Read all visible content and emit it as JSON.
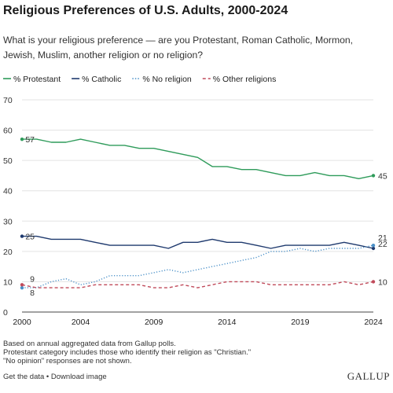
{
  "header": {
    "title": "Religious Preferences of U.S. Adults, 2000-2024",
    "subtitle": "What is your religious preference — are you Protestant, Roman Catholic, Mormon, Jewish, Muslim, another religion or no religion?"
  },
  "footer": {
    "notes": [
      "Based on annual aggregated data from Gallup polls.",
      "Protestant category includes those who identify their religion as \"Christian.\"",
      "\"No opinion\" responses are not shown."
    ],
    "get_data_label": "Get the data",
    "separator": " • ",
    "download_label": "Download image",
    "brand": "GALLUP"
  },
  "chart_data": {
    "type": "line",
    "title": "Religious Preferences of U.S. Adults, 2000-2024",
    "xlabel": "",
    "ylabel": "",
    "xlim": [
      2000,
      2024
    ],
    "ylim": [
      0,
      70
    ],
    "yticks": [
      0,
      10,
      20,
      30,
      40,
      50,
      60,
      70
    ],
    "xticks": [
      2000,
      2004,
      2009,
      2014,
      2019,
      2024
    ],
    "grid": true,
    "legend_position": "top",
    "x": [
      2000,
      2001,
      2002,
      2003,
      2004,
      2005,
      2006,
      2007,
      2008,
      2009,
      2010,
      2011,
      2012,
      2013,
      2014,
      2015,
      2016,
      2017,
      2018,
      2019,
      2020,
      2021,
      2022,
      2023,
      2024
    ],
    "series": [
      {
        "name": "% Protestant",
        "color": "#2e9b5a",
        "style": "solid",
        "values": [
          57,
          57,
          56,
          56,
          57,
          56,
          55,
          55,
          54,
          54,
          53,
          52,
          51,
          48,
          48,
          47,
          47,
          46,
          45,
          45,
          46,
          45,
          45,
          44,
          45
        ],
        "start_label": "57",
        "end_label": "45"
      },
      {
        "name": "% Catholic",
        "color": "#1f3a6e",
        "style": "solid",
        "values": [
          25,
          25,
          24,
          24,
          24,
          23,
          22,
          22,
          22,
          22,
          21,
          23,
          23,
          24,
          23,
          23,
          22,
          21,
          22,
          22,
          22,
          22,
          23,
          22,
          21
        ],
        "start_label": "25",
        "end_label": "21"
      },
      {
        "name": "% No religion",
        "color": "#4a90c8",
        "style": "dotted",
        "values": [
          8,
          8,
          10,
          11,
          9,
          10,
          12,
          12,
          12,
          13,
          14,
          13,
          14,
          15,
          16,
          17,
          18,
          20,
          20,
          21,
          20,
          21,
          21,
          21,
          22
        ],
        "start_label": "8",
        "end_label": "22"
      },
      {
        "name": "% Other religions",
        "color": "#c04a5a",
        "style": "dashed",
        "values": [
          9,
          8,
          8,
          8,
          8,
          9,
          9,
          9,
          9,
          8,
          8,
          9,
          8,
          9,
          10,
          10,
          10,
          9,
          9,
          9,
          9,
          9,
          10,
          9,
          10
        ],
        "start_label": "9",
        "end_label": "10"
      }
    ]
  }
}
